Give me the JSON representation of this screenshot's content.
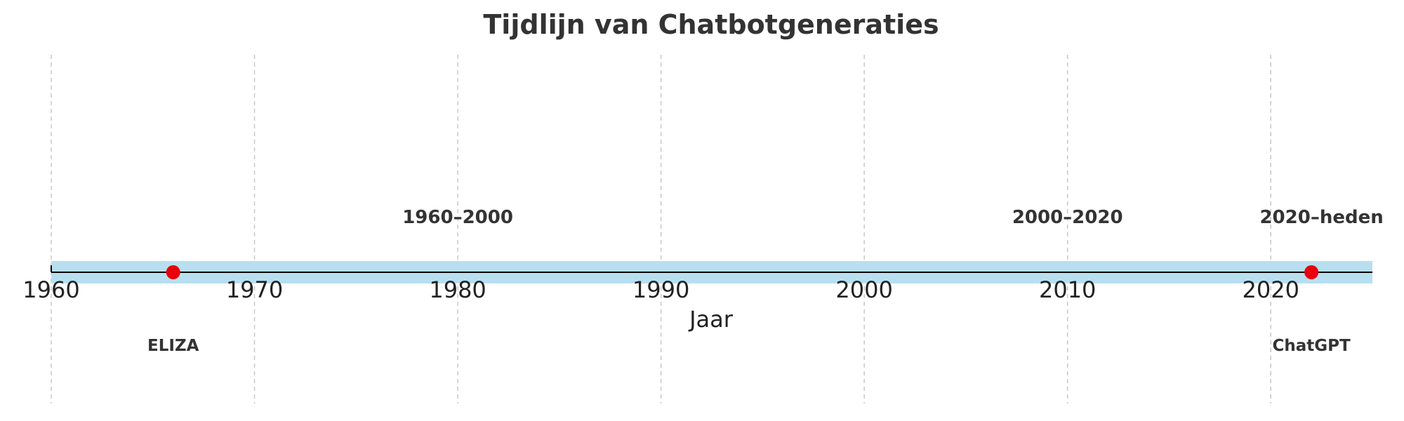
{
  "chart_data": {
    "type": "timeline",
    "title": "Tijdlijn van Chatbotgeneraties",
    "xlabel": "Jaar",
    "xlim": [
      1960,
      2025
    ],
    "xticks": [
      1960,
      1970,
      1980,
      1990,
      2000,
      2010,
      2020
    ],
    "grid": true,
    "band": {
      "start": 1960,
      "end": 2025,
      "color": "#b8dff0"
    },
    "axis_color": "#000000",
    "eras": [
      {
        "label": "1960–2000",
        "x": 1980
      },
      {
        "label": "2000–2020",
        "x": 2010
      },
      {
        "label": "2020–heden",
        "x": 2022.5
      }
    ],
    "events": [
      {
        "label": "ELIZA",
        "year": 1966,
        "color": "#e8000b"
      },
      {
        "label": "ChatGPT",
        "year": 2022,
        "color": "#e8000b"
      }
    ]
  }
}
